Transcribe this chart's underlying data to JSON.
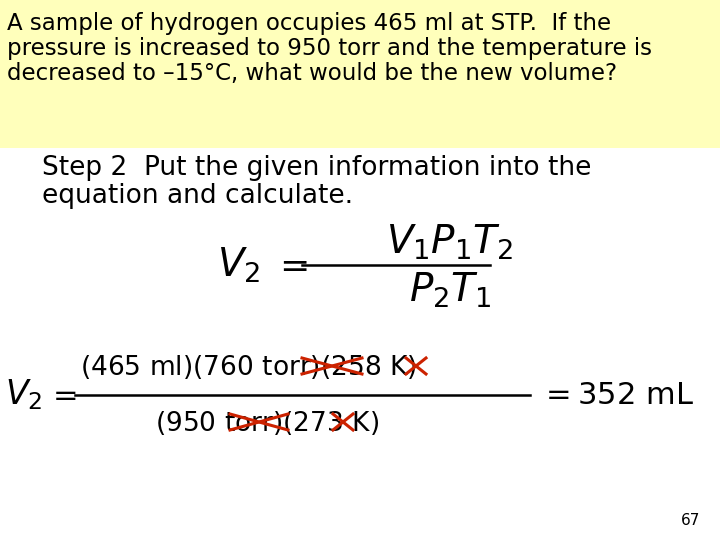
{
  "bg_color_white": "#ffffff",
  "bg_color_yellow": "#ffffbb",
  "text_color": "#000000",
  "strikethrough_color": "#cc2200",
  "title_line1": "A sample of hydrogen occupies 465 ml at STP.  If the",
  "title_line2": "pressure is increased to 950 torr and the temperature is",
  "title_line3": "decreased to –15°C, what would be the new volume?",
  "step_line1": "Step 2  Put the given information into the",
  "step_line2": "equation and calculate.",
  "page_number": "67",
  "font_size_title": 16.5,
  "font_size_step": 19,
  "font_size_formula": 26,
  "font_size_calc_large": 22,
  "font_size_calc_small": 19,
  "font_size_page": 11
}
